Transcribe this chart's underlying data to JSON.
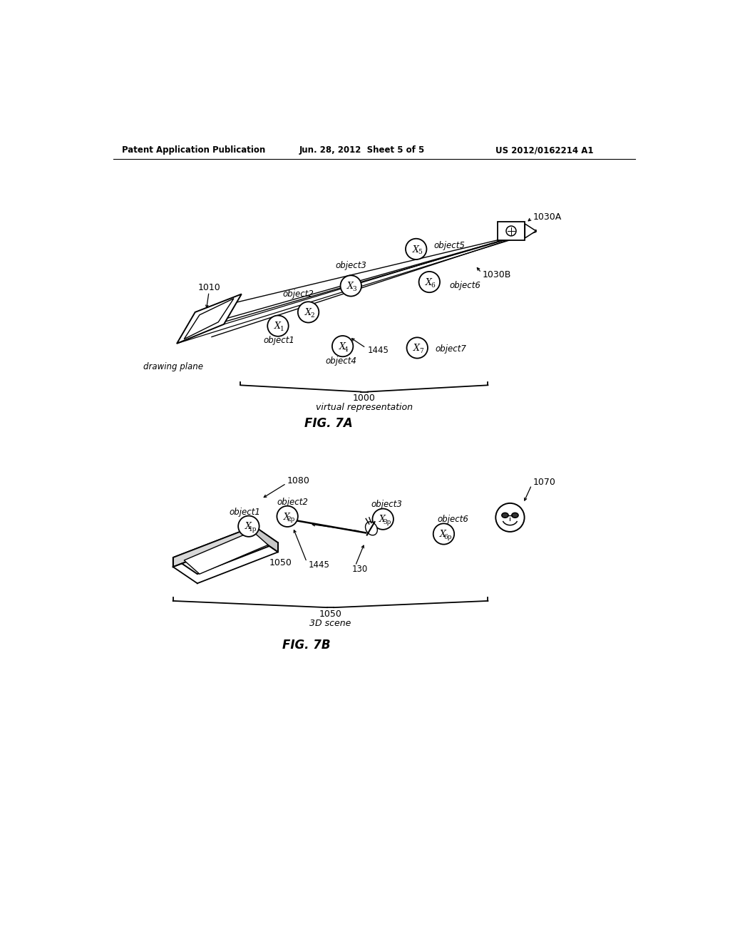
{
  "bg_color": "#ffffff",
  "header_left": "Patent Application Publication",
  "header_mid": "Jun. 28, 2012  Sheet 5 of 5",
  "header_right": "US 2012/0162214 A1"
}
